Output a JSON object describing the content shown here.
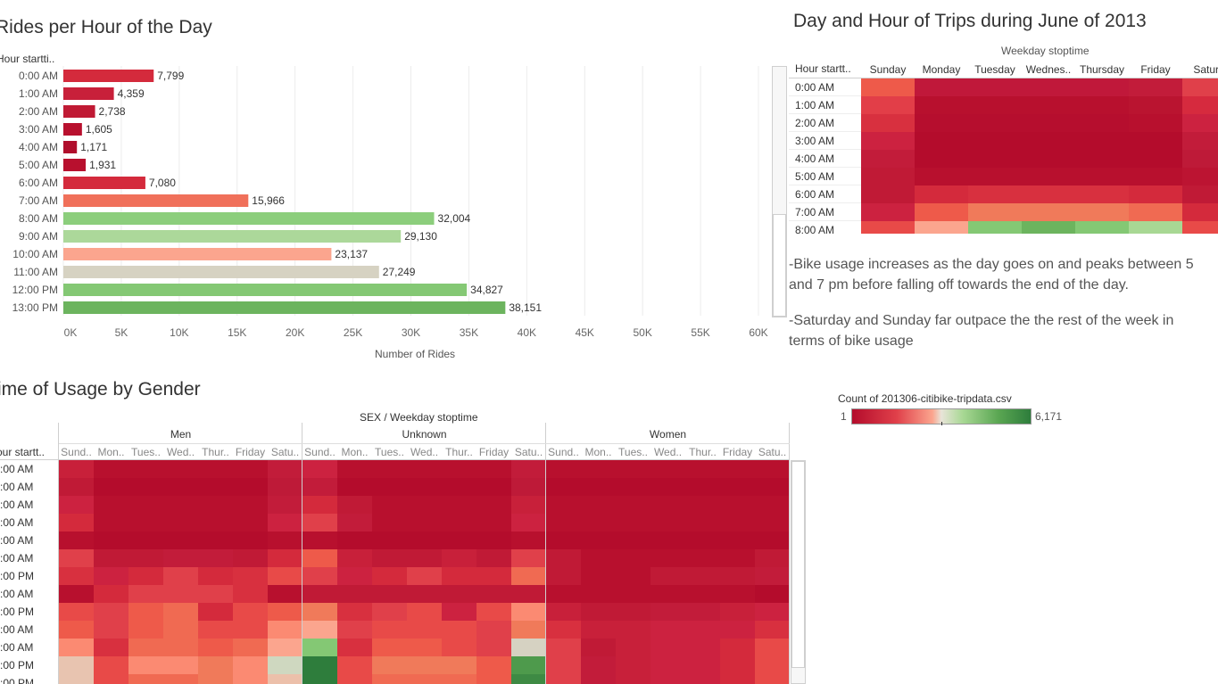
{
  "bar_panel": {
    "title": "Rides per Hour of the Day",
    "row_header": "Hour startti..",
    "xlabel": "Number of Rides",
    "ticks": [
      "0K",
      "5K",
      "10K",
      "15K",
      "20K",
      "25K",
      "30K",
      "35K",
      "40K",
      "45K",
      "50K",
      "55K",
      "60K"
    ]
  },
  "weekday_panel": {
    "title": "Day and Hour of Trips during June of 2013",
    "column_group": "Weekday stoptime",
    "row_header": "Hour startt..",
    "columns": [
      "Sunday",
      "Monday",
      "Tuesday",
      "Wednes..",
      "Thursday",
      "Friday",
      "Saturd"
    ],
    "rows": [
      "0:00 AM",
      "1:00 AM",
      "2:00 AM",
      "3:00 AM",
      "4:00 AM",
      "5:00 AM",
      "6:00 AM",
      "7:00 AM",
      "8:00 AM"
    ]
  },
  "notes": [
    "-Bike usage increases as the day goes on and peaks between 5 and 7 pm before falling off towards the end of the day.",
    "-Saturday and Sunday far outpace the the rest of the week in terms of bike usage"
  ],
  "legend": {
    "title": "Count of 201306-citibike-tripdata.csv",
    "min": "1",
    "max": "6,171"
  },
  "gender_panel": {
    "title": "ime of Usage by Gender",
    "column_group": "SEX  /  Weekday stoptime",
    "row_header": "our startt..",
    "groups": [
      "Men",
      "Unknown",
      "Women"
    ],
    "day_labels": [
      "Sund..",
      "Mon..",
      "Tues..",
      "Wed..",
      "Thur..",
      "Friday",
      "Satu.."
    ],
    "row_labels": [
      ":00 AM",
      ":00 AM",
      ":00 AM",
      ":00 AM",
      ":00 AM",
      ":00 AM",
      ":00 PM",
      ":00 AM",
      ":00 PM",
      ":00 AM",
      ":00 AM",
      ":00 PM",
      ":00 PM"
    ]
  },
  "colors": {
    "red_dark": "#b8102e",
    "red": "#d42a3c",
    "salmon": "#f0705a",
    "light_salmon": "#fba58e",
    "neutral": "#d6d2c2",
    "light_green": "#a8d894",
    "green": "#84c874",
    "green_mid": "#6cb45e",
    "dark_green": "#2e7d3c"
  },
  "chart_data": [
    {
      "type": "bar",
      "title": "Rides per Hour of the Day",
      "xlabel": "Number of Rides",
      "ylabel": "Hour startti..",
      "xlim": [
        0,
        60000
      ],
      "categories": [
        "0:00 AM",
        "1:00 AM",
        "2:00 AM",
        "3:00 AM",
        "4:00 AM",
        "5:00 AM",
        "6:00 AM",
        "7:00 AM",
        "8:00 AM",
        "9:00 AM",
        "10:00 AM",
        "11:00 AM",
        "12:00 PM",
        "13:00 PM"
      ],
      "values": [
        7799,
        4359,
        2738,
        1605,
        1171,
        1931,
        7080,
        15966,
        32004,
        29130,
        23137,
        27249,
        34827,
        38151
      ],
      "labels": [
        "7,799",
        "4,359",
        "2,738",
        "1,605",
        "1,171",
        "1,931",
        "7,080",
        "15,966",
        "32,004",
        "29,130",
        "23,137",
        "27,249",
        "34,827",
        "38,151"
      ],
      "bar_colors": [
        "#d42a3c",
        "#c8203a",
        "#c01a34",
        "#b8102e",
        "#b00e2c",
        "#b8102e",
        "#d42a3c",
        "#f0705a",
        "#8cce7c",
        "#acd89a",
        "#fba58e",
        "#d6d2c2",
        "#84c874",
        "#6cb45e"
      ]
    },
    {
      "type": "heatmap",
      "title": "Day and Hour of Trips during June of 2013",
      "columns": [
        "Sunday",
        "Monday",
        "Tuesday",
        "Wednes..",
        "Thursday",
        "Friday",
        "Saturd"
      ],
      "rows": [
        "0:00 AM",
        "1:00 AM",
        "2:00 AM",
        "3:00 AM",
        "4:00 AM",
        "5:00 AM",
        "6:00 AM",
        "7:00 AM",
        "8:00 AM"
      ],
      "cell_colors": [
        [
          "#ee5a4a",
          "#c0183a",
          "#c0183a",
          "#c0183a",
          "#c0183a",
          "#c21c3a",
          "#e0404a"
        ],
        [
          "#e23e48",
          "#b8102e",
          "#b8102e",
          "#b8102e",
          "#b8102e",
          "#ba1430",
          "#d62a3e"
        ],
        [
          "#d8303f",
          "#b60e2e",
          "#b60e2e",
          "#b60e2e",
          "#b60e2e",
          "#b8102e",
          "#cc2240"
        ],
        [
          "#cc2240",
          "#b40c2c",
          "#b40c2c",
          "#b40c2c",
          "#b40c2c",
          "#b40c2c",
          "#c21c3a"
        ],
        [
          "#c21c3a",
          "#b40c2c",
          "#b40c2c",
          "#b40c2c",
          "#b40c2c",
          "#b40c2c",
          "#be1a38"
        ],
        [
          "#c01a36",
          "#b8102e",
          "#b8102e",
          "#b8102e",
          "#b8102e",
          "#b8102e",
          "#bc1432"
        ],
        [
          "#c01a36",
          "#d42a3c",
          "#d8303f",
          "#d8303f",
          "#d8303f",
          "#d42a3c",
          "#c01a36"
        ],
        [
          "#cc2240",
          "#ee5a4a",
          "#f07a5a",
          "#f07a5a",
          "#f07a5a",
          "#f06a52",
          "#d42a3c"
        ],
        [
          "#e84a48",
          "#fba58e",
          "#84c874",
          "#6cb45e",
          "#84c874",
          "#a8d894",
          "#e84a48"
        ]
      ]
    },
    {
      "type": "heatmap",
      "title": "ime of Usage by Gender",
      "groups": [
        "Men",
        "Unknown",
        "Women"
      ],
      "columns": [
        "Sund..",
        "Mon..",
        "Tues..",
        "Wed..",
        "Thur..",
        "Friday",
        "Satu.."
      ],
      "rows": [
        ":00 AM",
        ":00 AM",
        ":00 AM",
        ":00 AM",
        ":00 AM",
        ":00 AM",
        ":00 PM",
        ":00 AM",
        ":00 PM",
        ":00 AM",
        ":00 AM",
        ":00 PM",
        ":00 PM"
      ],
      "cell_colors": [
        [
          "#c8203a",
          "#b8102e",
          "#b8102e",
          "#b8102e",
          "#b8102e",
          "#b8102e",
          "#c21c3a",
          "#cc2240",
          "#b8102e",
          "#b8102e",
          "#b8102e",
          "#b8102e",
          "#b8102e",
          "#c21c3a",
          "#b8102e",
          "#b8102e",
          "#b8102e",
          "#b8102e",
          "#b8102e",
          "#b8102e",
          "#b8102e"
        ],
        [
          "#c01a36",
          "#b40c2c",
          "#b40c2c",
          "#b40c2c",
          "#b40c2c",
          "#b40c2c",
          "#be1a38",
          "#c21c3a",
          "#b40c2c",
          "#b40c2c",
          "#b40c2c",
          "#b40c2c",
          "#b40c2c",
          "#be1a38",
          "#b40c2c",
          "#b40c2c",
          "#b40c2c",
          "#b40c2c",
          "#b40c2c",
          "#b40c2c",
          "#b40c2c"
        ],
        [
          "#cc2240",
          "#b8102e",
          "#b8102e",
          "#b8102e",
          "#b8102e",
          "#b8102e",
          "#c21c3a",
          "#d42a3c",
          "#c01a36",
          "#b8102e",
          "#b8102e",
          "#b8102e",
          "#b8102e",
          "#c8203a",
          "#b8102e",
          "#b8102e",
          "#b8102e",
          "#b8102e",
          "#b8102e",
          "#b8102e",
          "#b8102e"
        ],
        [
          "#d42a3c",
          "#b8102e",
          "#b8102e",
          "#b8102e",
          "#b8102e",
          "#b8102e",
          "#cc2240",
          "#e0404a",
          "#c21c3a",
          "#b8102e",
          "#b8102e",
          "#b8102e",
          "#b8102e",
          "#cc2240",
          "#b8102e",
          "#b8102e",
          "#b8102e",
          "#b8102e",
          "#b8102e",
          "#b8102e",
          "#b8102e"
        ],
        [
          "#b8102e",
          "#b40c2c",
          "#b40c2c",
          "#b40c2c",
          "#b40c2c",
          "#b40c2c",
          "#b8102e",
          "#b8102e",
          "#b40c2c",
          "#b40c2c",
          "#b40c2c",
          "#b40c2c",
          "#b40c2c",
          "#b8102e",
          "#b40c2c",
          "#b40c2c",
          "#b40c2c",
          "#b40c2c",
          "#b40c2c",
          "#b40c2c",
          "#b40c2c"
        ],
        [
          "#e0404a",
          "#c01a36",
          "#c01a36",
          "#c21c3a",
          "#c21c3a",
          "#c01a36",
          "#d42a3c",
          "#ee5a4a",
          "#c8203a",
          "#c01a36",
          "#c01a36",
          "#c8203a",
          "#c01a36",
          "#e0404a",
          "#c01a36",
          "#b8102e",
          "#b8102e",
          "#b8102e",
          "#b8102e",
          "#b8102e",
          "#c01a36"
        ],
        [
          "#d8303f",
          "#cc2240",
          "#d42a3c",
          "#e0404a",
          "#d42a3c",
          "#d8303f",
          "#e84a48",
          "#e0404a",
          "#cc2240",
          "#d42a3c",
          "#e0404a",
          "#d42a3c",
          "#d42a3c",
          "#f06a52",
          "#c01a36",
          "#b8102e",
          "#b8102e",
          "#c01a36",
          "#c01a36",
          "#c01a36",
          "#c21c3a"
        ],
        [
          "#b8102e",
          "#d42a3c",
          "#e0404a",
          "#e0404a",
          "#e0404a",
          "#d8303f",
          "#b8102e",
          "#c01a36",
          "#c01a36",
          "#c01a36",
          "#c01a36",
          "#c01a36",
          "#c01a36",
          "#c01a36",
          "#b8102e",
          "#b8102e",
          "#b8102e",
          "#b8102e",
          "#b8102e",
          "#b8102e",
          "#b40c2c"
        ],
        [
          "#e84a48",
          "#e0404a",
          "#ee5a4a",
          "#f06a52",
          "#d42a3c",
          "#e84a48",
          "#ee5a4a",
          "#f07a5a",
          "#d8303f",
          "#e0404a",
          "#e84a48",
          "#cc2240",
          "#e84a48",
          "#fb8a72",
          "#c8203a",
          "#c01a36",
          "#c01a36",
          "#c21c3a",
          "#c21c3a",
          "#c8203a",
          "#cc2240"
        ],
        [
          "#ee5a4a",
          "#e0404a",
          "#ee5a4a",
          "#f06a52",
          "#e84a48",
          "#e84a48",
          "#fb8a72",
          "#fba58e",
          "#e0404a",
          "#e84a48",
          "#e84a48",
          "#e84a48",
          "#e0404a",
          "#f07a5a",
          "#d8303f",
          "#c8203a",
          "#c8203a",
          "#cc2240",
          "#cc2240",
          "#cc2240",
          "#d8303f"
        ],
        [
          "#fb8a72",
          "#d8303f",
          "#f06a52",
          "#f06a52",
          "#ee5a4a",
          "#f06a52",
          "#fba58e",
          "#84c874",
          "#d8303f",
          "#ee5a4a",
          "#ee5a4a",
          "#e84a48",
          "#e0404a",
          "#d6d2c2",
          "#e0404a",
          "#c01a36",
          "#c8203a",
          "#cc2240",
          "#cc2240",
          "#d42a3c",
          "#e84a48"
        ],
        [
          "#e8c4b0",
          "#e84a48",
          "#fb8a72",
          "#fb8a72",
          "#f07a5a",
          "#fb8a72",
          "#cfd8c0",
          "#2e7d3c",
          "#e84a48",
          "#f07a5a",
          "#f07a5a",
          "#f07a5a",
          "#ee5a4a",
          "#4e9a4c",
          "#e0404a",
          "#c21c3a",
          "#c8203a",
          "#cc2240",
          "#cc2240",
          "#d42a3c",
          "#e84a48"
        ],
        [
          "#e8c4b0",
          "#e84a48",
          "#f06a52",
          "#f06a52",
          "#f07a5a",
          "#fb8a72",
          "#ecc0aa",
          "#2e7d3c",
          "#e84a48",
          "#f06a52",
          "#f06a52",
          "#f06a52",
          "#ee5a4a",
          "#3e8a44",
          "#e0404a",
          "#c21c3a",
          "#c8203a",
          "#cc2240",
          "#cc2240",
          "#d42a3c",
          "#e84a48"
        ]
      ]
    }
  ]
}
